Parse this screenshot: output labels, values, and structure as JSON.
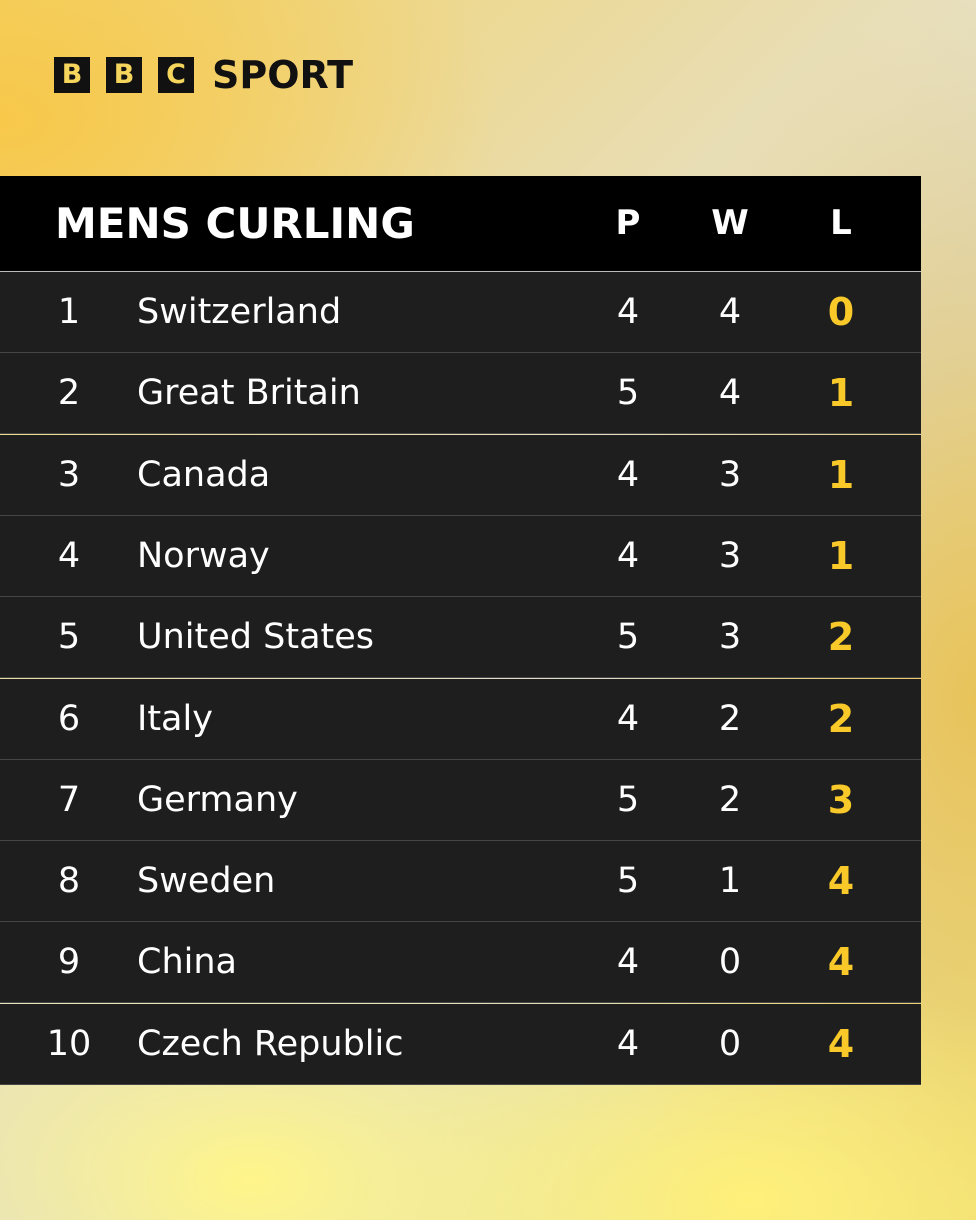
{
  "brand": {
    "letters": [
      "B",
      "B",
      "C"
    ],
    "word": "SPORT"
  },
  "table": {
    "title": "MENS CURLING",
    "columns": [
      "P",
      "W",
      "L"
    ],
    "rows": [
      [
        1,
        "Switzerland",
        4,
        4,
        0
      ],
      [
        2,
        "Great Britain",
        5,
        4,
        1
      ],
      [
        3,
        "Canada",
        4,
        3,
        1
      ],
      [
        4,
        "Norway",
        4,
        3,
        1
      ],
      [
        5,
        "United States",
        5,
        3,
        2
      ],
      [
        6,
        "Italy",
        4,
        2,
        2
      ],
      [
        7,
        "Germany",
        5,
        2,
        3
      ],
      [
        8,
        "Sweden",
        5,
        1,
        4
      ],
      [
        9,
        "China",
        4,
        0,
        4
      ],
      [
        10,
        "Czech Republic",
        4,
        0,
        4
      ]
    ]
  }
}
